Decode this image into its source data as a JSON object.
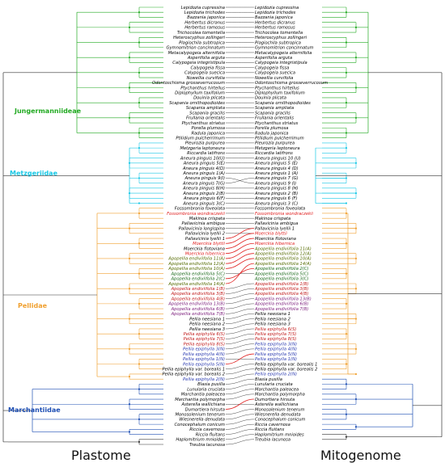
{
  "titles": {
    "left": "Plastome",
    "right": "Mitogenome"
  },
  "groups": [
    {
      "label": "Jungermanniideae",
      "color": "#22aa22"
    },
    {
      "label": "Metzgeriidae",
      "color": "#19c8e6"
    },
    {
      "label": "Pellidae",
      "color": "#f0a030"
    },
    {
      "label": "Marchantiidae",
      "color": "#1e4fb4"
    }
  ],
  "plastome_taxa": [
    {
      "name": "Lepidozia cupressina",
      "color": "#000000"
    },
    {
      "name": "Lepidozia trichodes",
      "color": "#000000"
    },
    {
      "name": "Bazzania japonica",
      "color": "#000000"
    },
    {
      "name": "Herbertus dicranus",
      "color": "#000000"
    },
    {
      "name": "Herbertus ramosus",
      "color": "#000000"
    },
    {
      "name": "Trichocolea tomentella",
      "color": "#000000"
    },
    {
      "name": "Heteroscyphus zollingeri",
      "color": "#000000"
    },
    {
      "name": "Plagiochila subtropica",
      "color": "#000000"
    },
    {
      "name": "Gymnomitrion concinnatum",
      "color": "#000000"
    },
    {
      "name": "Metacalypogeia alternifolia",
      "color": "#000000"
    },
    {
      "name": "Asperifolia arguta",
      "color": "#000000"
    },
    {
      "name": "Calypogeia integristipula",
      "color": "#000000"
    },
    {
      "name": "Calypogeia fissa",
      "color": "#000000"
    },
    {
      "name": "Calypogeia suecica",
      "color": "#000000"
    },
    {
      "name": "Nowellia curvifolia",
      "color": "#000000"
    },
    {
      "name": "Odontoschisma grosseverrucosum",
      "color": "#000000"
    },
    {
      "name": "Ptychanthus hirtellus",
      "color": "#000000"
    },
    {
      "name": "Diplophyllum taxifolium",
      "color": "#000000"
    },
    {
      "name": "Douinia plicata",
      "color": "#000000"
    },
    {
      "name": "Scapania ornithopodioides",
      "color": "#000000"
    },
    {
      "name": "Scapania ampliata",
      "color": "#000000"
    },
    {
      "name": "Scapania gracilis",
      "color": "#000000"
    },
    {
      "name": "Frullania orientalis",
      "color": "#000000"
    },
    {
      "name": "Ptychanthus striatus",
      "color": "#000000"
    },
    {
      "name": "Porella plumosa",
      "color": "#000000"
    },
    {
      "name": "Radula japonica",
      "color": "#000000"
    },
    {
      "name": "Ptilidium pulcherrimum",
      "color": "#000000"
    },
    {
      "name": "Pleurozia purpurea",
      "color": "#000000"
    },
    {
      "name": "Metzgeria leptoneura",
      "color": "#000000"
    },
    {
      "name": "Riccardia latifrons",
      "color": "#000000"
    },
    {
      "name": "Aneura pinguis 10(U)",
      "color": "#000000"
    },
    {
      "name": "Aneura pinguis 5(E)",
      "color": "#000000"
    },
    {
      "name": "Aneura pinguis 4(D)",
      "color": "#000000"
    },
    {
      "name": "Aneura pinguis 1(A)",
      "color": "#000000"
    },
    {
      "name": "Aneura pinguis 9(I)",
      "color": "#000000"
    },
    {
      "name": "Aneura pinguis 7(G)",
      "color": "#000000"
    },
    {
      "name": "Aneura pinguis 8(H)",
      "color": "#000000"
    },
    {
      "name": "Aneura pinguis 2(B)",
      "color": "#000000"
    },
    {
      "name": "Aneura pinguis 6(F)",
      "color": "#000000"
    },
    {
      "name": "Aneura pinguis 3(C)",
      "color": "#000000"
    },
    {
      "name": "Fossombronia foveolata",
      "color": "#000000"
    },
    {
      "name": "Fossombronia wondraczekii",
      "color": "#e02020"
    },
    {
      "name": "Makinoa crispata",
      "color": "#000000"
    },
    {
      "name": "Pallavicinia ambigua",
      "color": "#000000"
    },
    {
      "name": "Pallavicinia longispina",
      "color": "#000000"
    },
    {
      "name": "Pallavicinia lyellii 2",
      "color": "#000000"
    },
    {
      "name": "Pallavicinia lyellii 1",
      "color": "#000000"
    },
    {
      "name": "Moerckia blyttii",
      "color": "#e02020"
    },
    {
      "name": "Moerckia flotoviana",
      "color": "#000000"
    },
    {
      "name": "Moerckia hibernica",
      "color": "#e02020"
    },
    {
      "name": "Apopellia endiviifolia 11(A)",
      "color": "#556b00"
    },
    {
      "name": "Apopellia endiviifolia 12(A)",
      "color": "#556b00"
    },
    {
      "name": "Apopellia endiviifolia 10(A)",
      "color": "#556b00"
    },
    {
      "name": "Apopellia endiviifolia 5(C)",
      "color": "#1a6a1a"
    },
    {
      "name": "Apopellia endiviifolia 2(C)",
      "color": "#1a6a1a"
    },
    {
      "name": "Apopellia endiviifolia 14(A)",
      "color": "#556b00"
    },
    {
      "name": "Apopellia endiviifolia 1(B)",
      "color": "#c01818"
    },
    {
      "name": "Apopellia endiviifolia 3(B)",
      "color": "#c01818"
    },
    {
      "name": "Apopellia endiviifolia 4(B)",
      "color": "#c01818"
    },
    {
      "name": "Apopellia endiviifolia 13(B)",
      "color": "#7a1a7a"
    },
    {
      "name": "Apopellia endiviifolia 6(B)",
      "color": "#7a1a7a"
    },
    {
      "name": "Apopellia endiviifolia 7(B)",
      "color": "#7a1a7a"
    },
    {
      "name": "Pellia neesiana 1",
      "color": "#000000"
    },
    {
      "name": "Pellia neesiana 2",
      "color": "#000000"
    },
    {
      "name": "Pellia neesiana 3",
      "color": "#000000"
    },
    {
      "name": "Pellia epiphylla 6(S)",
      "color": "#c01818"
    },
    {
      "name": "Pellia epiphylla 7(S)",
      "color": "#c01818"
    },
    {
      "name": "Pellia epiphylla 8(S)",
      "color": "#c01818"
    },
    {
      "name": "Pellia epiphylla 3(N)",
      "color": "#2a3ab0"
    },
    {
      "name": "Pellia epiphylla 4(N)",
      "color": "#2a3ab0"
    },
    {
      "name": "Pellia epiphylla 1(N)",
      "color": "#2a3ab0"
    },
    {
      "name": "Pellia epiphylla 5(N)",
      "color": "#2a3ab0"
    },
    {
      "name": "Pellia epiphylla var. borealis 1",
      "color": "#000000"
    },
    {
      "name": "Pellia epiphylla var. borealis 2",
      "color": "#000000"
    },
    {
      "name": "Pellia epiphylla 2(N)",
      "color": "#2a3ab0"
    },
    {
      "name": "Blasia pusilla",
      "color": "#000000"
    },
    {
      "name": "Lunularia cruciata",
      "color": "#000000"
    },
    {
      "name": "Marchantia paleacea",
      "color": "#000000"
    },
    {
      "name": "Marchantia polymorpha",
      "color": "#000000"
    },
    {
      "name": "Asterella wallichiana",
      "color": "#000000"
    },
    {
      "name": "Dumortiera hirsuta",
      "color": "#000000"
    },
    {
      "name": "Monosolenium tenerum",
      "color": "#000000"
    },
    {
      "name": "Wiesnerella denudata",
      "color": "#000000"
    },
    {
      "name": "Conocephalum conicum",
      "color": "#000000"
    },
    {
      "name": "Riccia cavernosa",
      "color": "#000000"
    },
    {
      "name": "Riccia fluitans",
      "color": "#000000"
    },
    {
      "name": "Haplomitrium mnioides",
      "color": "#000000"
    },
    {
      "name": "Treubia lacunosa",
      "color": "#000000"
    }
  ],
  "mitogenome_taxa": [
    {
      "name": "Lepidozia cupressina",
      "color": "#000000"
    },
    {
      "name": "Lepidozia trichodes",
      "color": "#000000"
    },
    {
      "name": "Bazzania japonica",
      "color": "#000000"
    },
    {
      "name": "Herbertus dicranus",
      "color": "#000000"
    },
    {
      "name": "Herbertus ramosus",
      "color": "#000000"
    },
    {
      "name": "Trichocolea tomentella",
      "color": "#000000"
    },
    {
      "name": "Heteroscyphus zollingeri",
      "color": "#000000"
    },
    {
      "name": "Plagiochila subtropica",
      "color": "#000000"
    },
    {
      "name": "Gymnomitrion concinnatum",
      "color": "#000000"
    },
    {
      "name": "Metacalypogeia alternifolia",
      "color": "#000000"
    },
    {
      "name": "Asperifolia arguta",
      "color": "#000000"
    },
    {
      "name": "Calypogeia integristipula",
      "color": "#000000"
    },
    {
      "name": "Calypogeia fissa",
      "color": "#000000"
    },
    {
      "name": "Calypogeia suecica",
      "color": "#000000"
    },
    {
      "name": "Nowellia curvifolia",
      "color": "#000000"
    },
    {
      "name": "Odontoschisma grosseverrucosum",
      "color": "#000000"
    },
    {
      "name": "Ptychanthus hirtellus",
      "color": "#000000"
    },
    {
      "name": "Diplophyllum taxifolium",
      "color": "#000000"
    },
    {
      "name": "Douinia plicata",
      "color": "#000000"
    },
    {
      "name": "Scapania ornithopodioides",
      "color": "#000000"
    },
    {
      "name": "Scapania ampliata",
      "color": "#000000"
    },
    {
      "name": "Scapania gracilis",
      "color": "#000000"
    },
    {
      "name": "Frullania orientalis",
      "color": "#000000"
    },
    {
      "name": "Ptychanthus striatus",
      "color": "#000000"
    },
    {
      "name": "Porella plumosa",
      "color": "#000000"
    },
    {
      "name": "Radula japonica",
      "color": "#000000"
    },
    {
      "name": "Ptilidium pulcherrimum",
      "color": "#000000"
    },
    {
      "name": "Pleurozia purpurea",
      "color": "#000000"
    },
    {
      "name": "Metzgeria leptoneura",
      "color": "#000000"
    },
    {
      "name": "Riccardia latifrons",
      "color": "#000000"
    },
    {
      "name": "Aneura pinguis 10 (U)",
      "color": "#000000"
    },
    {
      "name": "Aneura pinguis 5 (E)",
      "color": "#000000"
    },
    {
      "name": "Aneura pinguis 4 (D)",
      "color": "#000000"
    },
    {
      "name": "Aneura pinguis 1 (A)",
      "color": "#000000"
    },
    {
      "name": "Aneura pinguis 7 (G)",
      "color": "#000000"
    },
    {
      "name": "Aneura pinguis 9 (I)",
      "color": "#000000"
    },
    {
      "name": "Aneura pinguis 8 (H)",
      "color": "#000000"
    },
    {
      "name": "Aneura pinguis 2 (B)",
      "color": "#000000"
    },
    {
      "name": "Aneura pinguis 6 (F)",
      "color": "#000000"
    },
    {
      "name": "Aneura pinguis 3 (C)",
      "color": "#000000"
    },
    {
      "name": "Fossombronia foveolata",
      "color": "#000000"
    },
    {
      "name": "Fossombronia wondraczekii",
      "color": "#e02020"
    },
    {
      "name": "Makinoa crispata",
      "color": "#000000"
    },
    {
      "name": "Pallavicinia ambigua",
      "color": "#000000"
    },
    {
      "name": "Pallavicinia lyellii 1",
      "color": "#000000"
    },
    {
      "name": "Moerckia blyttii",
      "color": "#e02020"
    },
    {
      "name": "Moerckia flotoviana",
      "color": "#000000"
    },
    {
      "name": "Moerckia hibernica",
      "color": "#e02020"
    },
    {
      "name": "Apopellia endiviifolia 11(A)",
      "color": "#556b00"
    },
    {
      "name": "Apopellia endiviifolia 12(A)",
      "color": "#556b00"
    },
    {
      "name": "Apopellia endiviifolia 10(A)",
      "color": "#556b00"
    },
    {
      "name": "Apopellia endiviifolia 14(A)",
      "color": "#556b00"
    },
    {
      "name": "Apopellia endiviifolia 2(C)",
      "color": "#1a6a1a"
    },
    {
      "name": "Apopellia endiviifolia 5(C)",
      "color": "#1a6a1a"
    },
    {
      "name": "Apopellia endiviifolia 3(C)",
      "color": "#1a6a1a"
    },
    {
      "name": "Apopellia endiviifolia 1(B)",
      "color": "#c01818"
    },
    {
      "name": "Apopellia endiviifolia 3(B)",
      "color": "#c01818"
    },
    {
      "name": "Apopellia endiviifolia 4(B)",
      "color": "#c01818"
    },
    {
      "name": "Apopellia endiviifolia 13(B)",
      "color": "#7a1a7a"
    },
    {
      "name": "Apopellia endiviifolia 6(B)",
      "color": "#7a1a7a"
    },
    {
      "name": "Apopellia endiviifolia 7(B)",
      "color": "#7a1a7a"
    },
    {
      "name": "Pellia neesiana 1",
      "color": "#000000"
    },
    {
      "name": "Pellia neesiana 2",
      "color": "#000000"
    },
    {
      "name": "Pellia neesiana 3",
      "color": "#000000"
    },
    {
      "name": "Pellia epiphylla 6(S)",
      "color": "#c01818"
    },
    {
      "name": "Pellia epiphylla 7(S)",
      "color": "#c01818"
    },
    {
      "name": "Pellia epiphylla 8(S)",
      "color": "#c01818"
    },
    {
      "name": "Pellia epiphylla 3(N)",
      "color": "#2a3ab0"
    },
    {
      "name": "Pellia epiphylla 4(N)",
      "color": "#2a3ab0"
    },
    {
      "name": "Pellia epiphylla 5(N)",
      "color": "#2a3ab0"
    },
    {
      "name": "Pellia epiphylla 1(N)",
      "color": "#2a3ab0"
    },
    {
      "name": "Pellia epiphylla var. borealis 1",
      "color": "#000000"
    },
    {
      "name": "Pellia epiphylla var. borealis 2",
      "color": "#000000"
    },
    {
      "name": "Pellia epiphylla 2(N)",
      "color": "#2a3ab0"
    },
    {
      "name": "Blasia pusilla",
      "color": "#000000"
    },
    {
      "name": "Lunularia cruciata",
      "color": "#000000"
    },
    {
      "name": "Marchantia paleacea",
      "color": "#000000"
    },
    {
      "name": "Marchantia polymorpha",
      "color": "#000000"
    },
    {
      "name": "Dumortiera hirsuta",
      "color": "#000000"
    },
    {
      "name": "Asterella wallichiana",
      "color": "#000000"
    },
    {
      "name": "Monosolenium tenerum",
      "color": "#000000"
    },
    {
      "name": "Wiesnerella denudata",
      "color": "#000000"
    },
    {
      "name": "Conocephalum conicum",
      "color": "#000000"
    },
    {
      "name": "Riccia cavernosa",
      "color": "#000000"
    },
    {
      "name": "Riccia fluitans",
      "color": "#000000"
    },
    {
      "name": "Haplomitrium mnioides",
      "color": "#000000"
    },
    {
      "name": "Treubia lacunosa",
      "color": "#000000"
    }
  ]
}
